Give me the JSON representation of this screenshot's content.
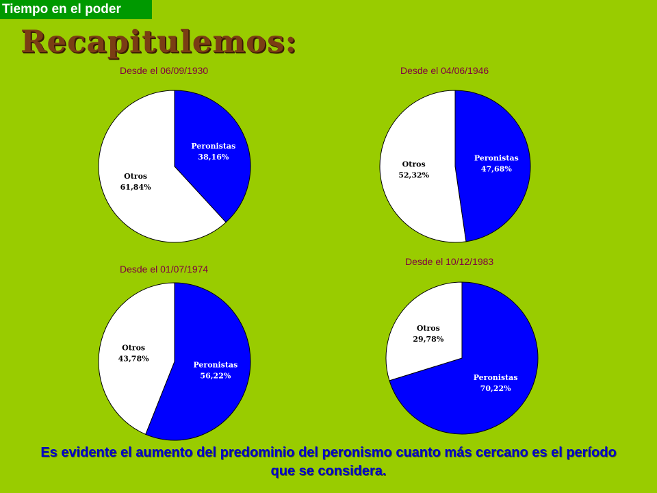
{
  "tag": "Tiempo en el poder",
  "title": "Recapitulemos:",
  "colors": {
    "peronistas": "#0000ff",
    "otros": "#ffffff",
    "background": "#99cc00"
  },
  "chart_data": [
    {
      "type": "pie",
      "title": "Desde el 06/09/1930",
      "slices": [
        {
          "name": "Peronistas",
          "value": 38.16,
          "label": "38,16%"
        },
        {
          "name": "Otros",
          "value": 61.84,
          "label": "61,84%"
        }
      ]
    },
    {
      "type": "pie",
      "title": "Desde el 04/06/1946",
      "slices": [
        {
          "name": "Peronistas",
          "value": 47.68,
          "label": "47,68%"
        },
        {
          "name": "Otros",
          "value": 52.32,
          "label": "52,32%"
        }
      ]
    },
    {
      "type": "pie",
      "title": "Desde el 01/07/1974",
      "slices": [
        {
          "name": "Peronistas",
          "value": 56.22,
          "label": "56,22%"
        },
        {
          "name": "Otros",
          "value": 43.78,
          "label": "43,78%"
        }
      ]
    },
    {
      "type": "pie",
      "title": "Desde el 10/12/1983",
      "slices": [
        {
          "name": "Peronistas",
          "value": 70.22,
          "label": "70,22%"
        },
        {
          "name": "Otros",
          "value": 29.78,
          "label": "29,78%"
        }
      ]
    }
  ],
  "footer": "Es evidente el aumento del predominio del peronismo cuanto más cercano es el período que se considera."
}
